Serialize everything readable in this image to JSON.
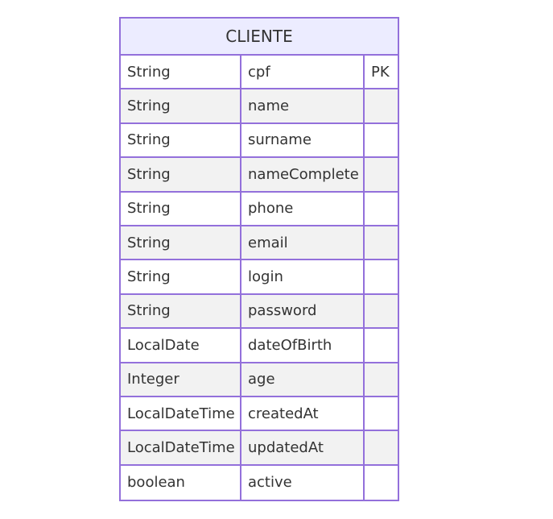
{
  "entity": {
    "name": "CLIENTE",
    "attributes": [
      {
        "type": "String",
        "name": "cpf",
        "key": "PK"
      },
      {
        "type": "String",
        "name": "name",
        "key": ""
      },
      {
        "type": "String",
        "name": "surname",
        "key": ""
      },
      {
        "type": "String",
        "name": "nameComplete",
        "key": ""
      },
      {
        "type": "String",
        "name": "phone",
        "key": ""
      },
      {
        "type": "String",
        "name": "email",
        "key": ""
      },
      {
        "type": "String",
        "name": "login",
        "key": ""
      },
      {
        "type": "String",
        "name": "password",
        "key": ""
      },
      {
        "type": "LocalDate",
        "name": "dateOfBirth",
        "key": ""
      },
      {
        "type": "Integer",
        "name": "age",
        "key": ""
      },
      {
        "type": "LocalDateTime",
        "name": "createdAt",
        "key": ""
      },
      {
        "type": "LocalDateTime",
        "name": "updatedAt",
        "key": ""
      },
      {
        "type": "boolean",
        "name": "active",
        "key": ""
      }
    ]
  },
  "colors": {
    "border": "#9370DB",
    "header_bg": "#ECECFF",
    "row_alt_bg": "#f2f2f2",
    "text": "#333333"
  }
}
